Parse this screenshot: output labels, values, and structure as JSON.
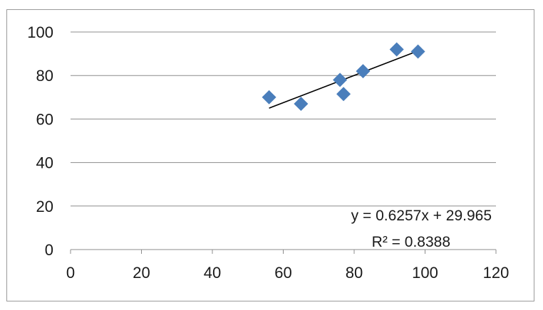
{
  "chart_data": {
    "type": "scatter",
    "title": "",
    "xlabel": "",
    "ylabel": "",
    "xlim": [
      0,
      120
    ],
    "ylim": [
      0,
      100
    ],
    "x_ticks": [
      0,
      20,
      40,
      60,
      80,
      100,
      120
    ],
    "y_ticks": [
      0,
      20,
      40,
      60,
      80,
      100
    ],
    "grid": "horizontal",
    "legend": "none",
    "marker": "diamond",
    "marker_color": "#4a7ebb",
    "series": [
      {
        "points": [
          {
            "x": 56,
            "y": 70
          },
          {
            "x": 65,
            "y": 67
          },
          {
            "x": 76,
            "y": 78
          },
          {
            "x": 77,
            "y": 71.5
          },
          {
            "x": 82.5,
            "y": 82
          },
          {
            "x": 92,
            "y": 92
          },
          {
            "x": 98,
            "y": 91
          }
        ]
      }
    ],
    "trendline": {
      "type": "linear",
      "slope": 0.6257,
      "intercept": 29.965,
      "x_range": [
        56,
        98
      ],
      "color": "#000000",
      "equation_label": "y = 0.6257x + 29.965",
      "r2_label": "R² = 0.8388"
    }
  }
}
